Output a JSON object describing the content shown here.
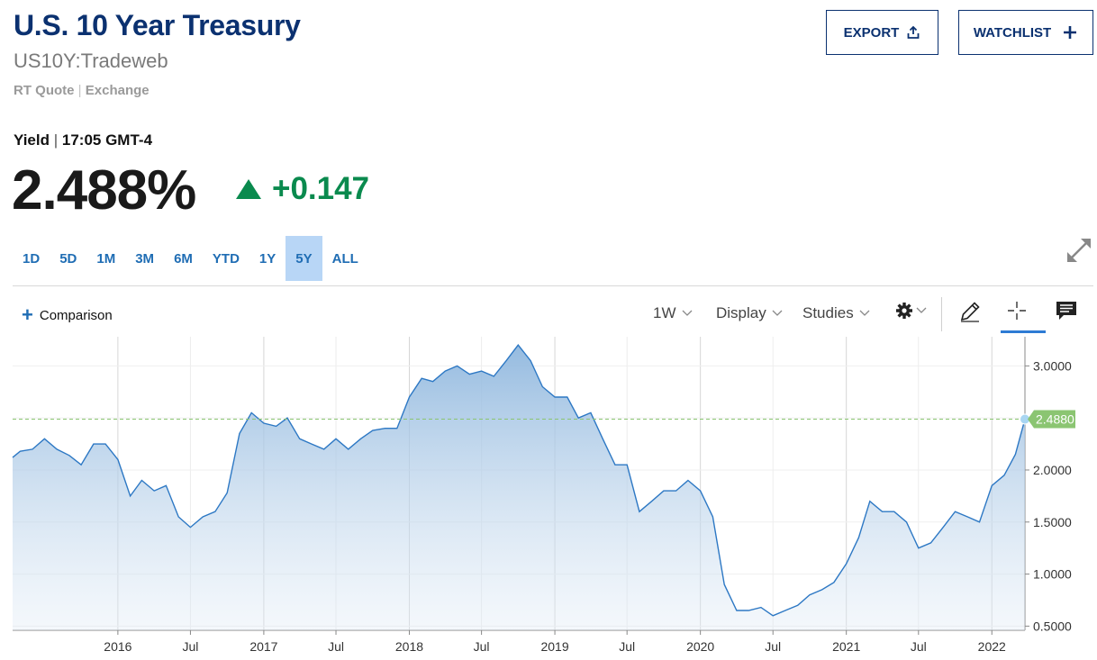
{
  "header": {
    "title": "U.S. 10 Year Treasury",
    "symbol": "US10Y:Tradeweb",
    "quote_type": "RT Quote",
    "quote_source": "Exchange",
    "export_label": "EXPORT",
    "watchlist_label": "WATCHLIST"
  },
  "quote": {
    "label": "Yield",
    "time": "17:05 GMT-4",
    "value": "2.488%",
    "change": "+0.147",
    "change_color": "#0a8a4e"
  },
  "ranges": [
    "1D",
    "5D",
    "1M",
    "3M",
    "6M",
    "YTD",
    "1Y",
    "5Y",
    "ALL"
  ],
  "active_range": "5Y",
  "toolbar": {
    "comparison_label": "Comparison",
    "interval_label": "1W",
    "display_label": "Display",
    "studies_label": "Studies",
    "icons": [
      "settings-icon",
      "draw-pencil-icon",
      "crosshair-icon",
      "comment-icon"
    ]
  },
  "chart_data": {
    "type": "area",
    "title": "",
    "xlabel": "",
    "ylabel": "",
    "x_ticks": [
      "2016",
      "Jul",
      "2017",
      "Jul",
      "2018",
      "Jul",
      "2019",
      "Jul",
      "2020",
      "Jul",
      "2021",
      "Jul",
      "2022"
    ],
    "y_ticks": [
      "0.5000",
      "1.0000",
      "1.5000",
      "2.0000",
      "2.5000",
      "3.0000"
    ],
    "ylim": [
      0.46,
      3.28
    ],
    "xlim": [
      "2015-04-12",
      "2022-03-25"
    ],
    "current_value": 2.488,
    "current_value_label": "2.4880",
    "line_color": "#2d78c4",
    "fill_color": "#8fb7de",
    "marker_color": "#8bc572",
    "grid": true,
    "series": [
      {
        "x": [
          "2015-04-12",
          "2015-05-01",
          "2015-06-01",
          "2015-07-01",
          "2015-08-01",
          "2015-09-01",
          "2015-10-01",
          "2015-11-01",
          "2015-12-01",
          "2016-01-01",
          "2016-02-01",
          "2016-03-01",
          "2016-04-01",
          "2016-05-01",
          "2016-06-01",
          "2016-07-01",
          "2016-08-01",
          "2016-09-01",
          "2016-10-01",
          "2016-11-01",
          "2016-12-01",
          "2017-01-01",
          "2017-02-01",
          "2017-03-01",
          "2017-04-01",
          "2017-05-01",
          "2017-06-01",
          "2017-07-01",
          "2017-08-01",
          "2017-09-01",
          "2017-10-01",
          "2017-11-01",
          "2017-12-01",
          "2018-01-01",
          "2018-02-01",
          "2018-03-01",
          "2018-04-01",
          "2018-05-01",
          "2018-06-01",
          "2018-07-01",
          "2018-08-01",
          "2018-09-01",
          "2018-10-01",
          "2018-11-01",
          "2018-12-01",
          "2019-01-01",
          "2019-02-01",
          "2019-03-01",
          "2019-04-01",
          "2019-05-01",
          "2019-06-01",
          "2019-07-01",
          "2019-08-01",
          "2019-09-01",
          "2019-10-01",
          "2019-11-01",
          "2019-12-01",
          "2020-01-01",
          "2020-02-01",
          "2020-03-01",
          "2020-04-01",
          "2020-05-01",
          "2020-06-01",
          "2020-07-01",
          "2020-08-01",
          "2020-09-01",
          "2020-10-01",
          "2020-11-01",
          "2020-12-01",
          "2021-01-01",
          "2021-02-01",
          "2021-03-01",
          "2021-04-01",
          "2021-05-01",
          "2021-06-01",
          "2021-07-01",
          "2021-08-01",
          "2021-09-01",
          "2021-10-01",
          "2021-11-01",
          "2021-12-01",
          "2022-01-01",
          "2022-02-01",
          "2022-03-01",
          "2022-03-25"
        ],
        "values": [
          2.12,
          2.18,
          2.2,
          2.3,
          2.2,
          2.14,
          2.05,
          2.25,
          2.25,
          2.1,
          1.75,
          1.9,
          1.8,
          1.85,
          1.55,
          1.45,
          1.55,
          1.6,
          1.78,
          2.35,
          2.55,
          2.45,
          2.42,
          2.5,
          2.3,
          2.25,
          2.2,
          2.3,
          2.2,
          2.3,
          2.38,
          2.4,
          2.4,
          2.7,
          2.88,
          2.85,
          2.95,
          3.0,
          2.92,
          2.95,
          2.9,
          3.05,
          3.2,
          3.05,
          2.8,
          2.7,
          2.7,
          2.5,
          2.55,
          2.3,
          2.05,
          2.05,
          1.6,
          1.7,
          1.8,
          1.8,
          1.9,
          1.8,
          1.55,
          0.9,
          0.65,
          0.65,
          0.68,
          0.6,
          0.65,
          0.7,
          0.8,
          0.85,
          0.92,
          1.1,
          1.35,
          1.7,
          1.6,
          1.6,
          1.5,
          1.25,
          1.3,
          1.45,
          1.6,
          1.55,
          1.5,
          1.85,
          1.95,
          2.15,
          2.488
        ]
      }
    ]
  }
}
